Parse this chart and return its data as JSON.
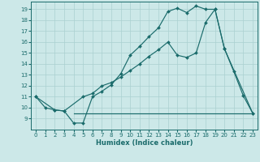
{
  "xlabel": "Humidex (Indice chaleur)",
  "bg_color": "#cce8e8",
  "grid_color": "#aad0d0",
  "line_color": "#1a6b6b",
  "xlim": [
    -0.5,
    23.5
  ],
  "ylim": [
    8,
    19.7
  ],
  "yticks": [
    9,
    10,
    11,
    12,
    13,
    14,
    15,
    16,
    17,
    18,
    19
  ],
  "xticks": [
    0,
    1,
    2,
    3,
    4,
    5,
    6,
    7,
    8,
    9,
    10,
    11,
    12,
    13,
    14,
    15,
    16,
    17,
    18,
    19,
    20,
    21,
    22,
    23
  ],
  "line1_x": [
    0,
    1,
    2,
    3,
    4,
    5,
    6,
    7,
    8,
    9,
    10,
    11,
    12,
    13,
    14,
    15,
    16,
    17,
    18,
    19,
    20,
    21,
    22,
    23
  ],
  "line1_y": [
    11,
    10,
    9.8,
    9.7,
    8.6,
    8.6,
    11.0,
    11.5,
    12.1,
    13.1,
    14.8,
    15.6,
    16.5,
    17.3,
    18.8,
    19.1,
    18.7,
    19.3,
    19.0,
    19.0,
    15.4,
    13.3,
    11.1,
    9.5
  ],
  "line2_x": [
    0,
    2,
    3,
    5,
    6,
    7,
    8,
    9,
    10,
    11,
    12,
    13,
    14,
    15,
    16,
    17,
    18,
    19,
    20,
    23
  ],
  "line2_y": [
    11,
    9.8,
    9.7,
    11.0,
    11.3,
    12.0,
    12.3,
    12.8,
    13.4,
    14.0,
    14.7,
    15.3,
    16.0,
    14.8,
    14.6,
    15.0,
    17.8,
    19.0,
    15.4,
    9.5
  ],
  "line3_x": [
    4,
    23
  ],
  "line3_y": [
    9.5,
    9.5
  ]
}
